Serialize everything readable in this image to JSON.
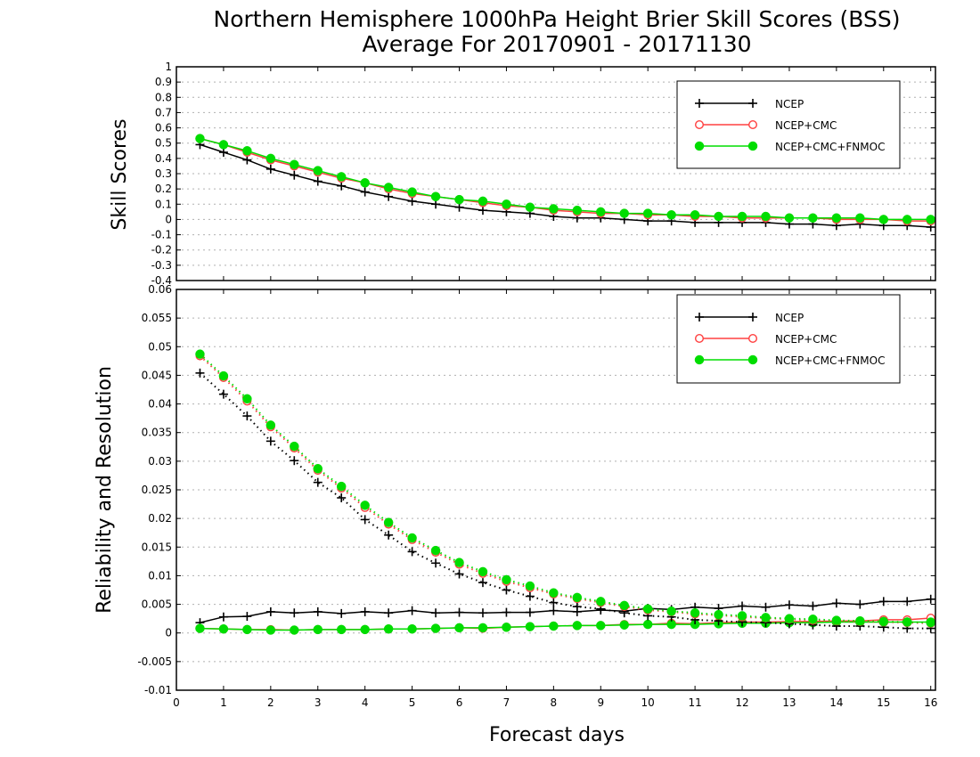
{
  "title": "Northern Hemisphere 1000hPa Height Brier Skill Scores (BSS)",
  "subtitle": "Average For 20170901 - 20171130",
  "colors": {
    "ncep": "#000000",
    "ncep_cmc": "#ff4040",
    "ncep_cmc_fnmoc": "#00dd00",
    "grid": "#b0b0b0"
  },
  "chart_data": [
    {
      "type": "line",
      "panel": "top",
      "ylabel": "Skill Scores",
      "xlabel": "",
      "xlim": [
        0,
        16.1
      ],
      "ylim": [
        -0.4,
        1
      ],
      "y_ticks": [
        "-0.4",
        "-0.3",
        "-0.2",
        "-0.1",
        "0",
        "0.1",
        "0.2",
        "0.3",
        "0.4",
        "0.5",
        "0.6",
        "0.7",
        "0.8",
        "0.9",
        "1"
      ],
      "grid": true,
      "legend_position": "top-right",
      "x": [
        0.5,
        1,
        1.5,
        2,
        2.5,
        3,
        3.5,
        4,
        4.5,
        5,
        5.5,
        6,
        6.5,
        7,
        7.5,
        8,
        8.5,
        9,
        9.5,
        10,
        10.5,
        11,
        11.5,
        12,
        12.5,
        13,
        13.5,
        14,
        14.5,
        15,
        15.5,
        16
      ],
      "series": [
        {
          "name": "NCEP",
          "style": "solid",
          "marker": "plus",
          "color": "#000000",
          "values": [
            0.49,
            0.44,
            0.39,
            0.33,
            0.29,
            0.25,
            0.22,
            0.18,
            0.15,
            0.12,
            0.1,
            0.08,
            0.06,
            0.05,
            0.04,
            0.02,
            0.01,
            0.01,
            0.0,
            -0.01,
            -0.01,
            -0.02,
            -0.02,
            -0.02,
            -0.02,
            -0.03,
            -0.03,
            -0.04,
            -0.03,
            -0.04,
            -0.04,
            -0.05
          ]
        },
        {
          "name": "NCEP+CMC",
          "style": "solid",
          "marker": "open-circle",
          "color": "#ff4040",
          "values": [
            0.53,
            0.49,
            0.44,
            0.39,
            0.35,
            0.31,
            0.27,
            0.24,
            0.2,
            0.17,
            0.15,
            0.13,
            0.11,
            0.09,
            0.08,
            0.06,
            0.05,
            0.04,
            0.04,
            0.03,
            0.03,
            0.02,
            0.02,
            0.01,
            0.01,
            0.01,
            0.01,
            0.0,
            0.0,
            0.0,
            -0.01,
            -0.01
          ]
        },
        {
          "name": "NCEP+CMC+FNMOC",
          "style": "solid",
          "marker": "filled-circle",
          "color": "#00dd00",
          "values": [
            0.53,
            0.49,
            0.45,
            0.4,
            0.36,
            0.32,
            0.28,
            0.24,
            0.21,
            0.18,
            0.15,
            0.13,
            0.12,
            0.1,
            0.08,
            0.07,
            0.06,
            0.05,
            0.04,
            0.04,
            0.03,
            0.03,
            0.02,
            0.02,
            0.02,
            0.01,
            0.01,
            0.01,
            0.01,
            0.0,
            0.0,
            0.0
          ]
        }
      ]
    },
    {
      "type": "line",
      "panel": "bottom",
      "ylabel": "Reliability and Resolution",
      "xlabel": "Forecast days",
      "xlim": [
        0,
        16.1
      ],
      "ylim": [
        -0.01,
        0.06
      ],
      "y_ticks": [
        "-0.01",
        "-0.005",
        "0",
        "0.005",
        "0.01",
        "0.015",
        "0.02",
        "0.025",
        "0.03",
        "0.035",
        "0.04",
        "0.045",
        "0.05",
        "0.055",
        "0.06"
      ],
      "x_ticks": [
        "0",
        "1",
        "2",
        "3",
        "4",
        "5",
        "6",
        "7",
        "8",
        "9",
        "10",
        "11",
        "12",
        "13",
        "14",
        "15",
        "16"
      ],
      "grid": true,
      "legend_position": "top-right",
      "x": [
        0.5,
        1,
        1.5,
        2,
        2.5,
        3,
        3.5,
        4,
        4.5,
        5,
        5.5,
        6,
        6.5,
        7,
        7.5,
        8,
        8.5,
        9,
        9.5,
        10,
        10.5,
        11,
        11.5,
        12,
        12.5,
        13,
        13.5,
        14,
        14.5,
        15,
        15.5,
        16
      ],
      "series": [
        {
          "name": "NCEP",
          "legend": true,
          "style": "solid",
          "marker": "plus",
          "color": "#000000",
          "values": [
            0.0018,
            0.0028,
            0.0029,
            0.0037,
            0.0035,
            0.0037,
            0.0034,
            0.0037,
            0.0035,
            0.0039,
            0.0035,
            0.0036,
            0.0035,
            0.0036,
            0.0036,
            0.0039,
            0.0037,
            0.004,
            0.0038,
            0.0043,
            0.0041,
            0.0045,
            0.0043,
            0.0047,
            0.0045,
            0.0049,
            0.0047,
            0.0052,
            0.005,
            0.0055,
            0.0055,
            0.0059
          ]
        },
        {
          "name": "NCEP+CMC",
          "legend": true,
          "style": "solid",
          "marker": "open-circle",
          "color": "#ff4040",
          "values": [
            0.0008,
            0.0007,
            0.0006,
            0.0006,
            0.0005,
            0.0006,
            0.0006,
            0.0006,
            0.0007,
            0.0007,
            0.0008,
            0.0009,
            0.0008,
            0.001,
            0.0011,
            0.0012,
            0.0013,
            0.0013,
            0.0015,
            0.0015,
            0.0017,
            0.0016,
            0.0018,
            0.0019,
            0.0019,
            0.002,
            0.002,
            0.0021,
            0.0021,
            0.0023,
            0.0023,
            0.0026
          ]
        },
        {
          "name": "NCEP+CMC+FNMOC",
          "legend": true,
          "style": "solid",
          "marker": "filled-circle",
          "color": "#00dd00",
          "values": [
            0.0008,
            0.0007,
            0.0006,
            0.0005,
            0.0005,
            0.0006,
            0.0006,
            0.0006,
            0.0007,
            0.0007,
            0.0008,
            0.0009,
            0.0009,
            0.001,
            0.0011,
            0.0012,
            0.0013,
            0.0013,
            0.0014,
            0.0015,
            0.0015,
            0.0015,
            0.0016,
            0.0017,
            0.0017,
            0.0018,
            0.0018,
            0.0019,
            0.0019,
            0.0019,
            0.0019,
            0.0019
          ]
        },
        {
          "legend": false,
          "style": "dotted",
          "marker": "plus",
          "color": "#000000",
          "values": [
            0.0454,
            0.0417,
            0.0379,
            0.0335,
            0.0301,
            0.0263,
            0.0236,
            0.0198,
            0.0171,
            0.0142,
            0.0122,
            0.0103,
            0.0088,
            0.0075,
            0.0064,
            0.0053,
            0.0046,
            0.0042,
            0.0035,
            0.003,
            0.0028,
            0.0023,
            0.0021,
            0.0019,
            0.0018,
            0.0016,
            0.0014,
            0.0012,
            0.0012,
            0.001,
            0.0008,
            0.0008
          ]
        },
        {
          "legend": false,
          "style": "dotted",
          "marker": "open-circle",
          "color": "#ff4040",
          "values": [
            0.0484,
            0.0446,
            0.0405,
            0.036,
            0.0323,
            0.0284,
            0.0253,
            0.0219,
            0.019,
            0.0163,
            0.0141,
            0.012,
            0.0104,
            0.009,
            0.0079,
            0.0068,
            0.006,
            0.0053,
            0.0046,
            0.004,
            0.0037,
            0.0033,
            0.0031,
            0.0028,
            0.0026,
            0.0024,
            0.0022,
            0.0021,
            0.002,
            0.0019,
            0.0018,
            0.0017
          ]
        },
        {
          "legend": false,
          "style": "dotted",
          "marker": "filled-circle",
          "color": "#00dd00",
          "values": [
            0.0487,
            0.0449,
            0.0409,
            0.0363,
            0.0326,
            0.0287,
            0.0256,
            0.0223,
            0.0193,
            0.0166,
            0.0144,
            0.0123,
            0.0107,
            0.0093,
            0.0082,
            0.007,
            0.0062,
            0.0055,
            0.0048,
            0.0042,
            0.0038,
            0.0035,
            0.0032,
            0.003,
            0.0027,
            0.0025,
            0.0024,
            0.0022,
            0.0021,
            0.002,
            0.0019,
            0.0018
          ]
        }
      ]
    }
  ]
}
